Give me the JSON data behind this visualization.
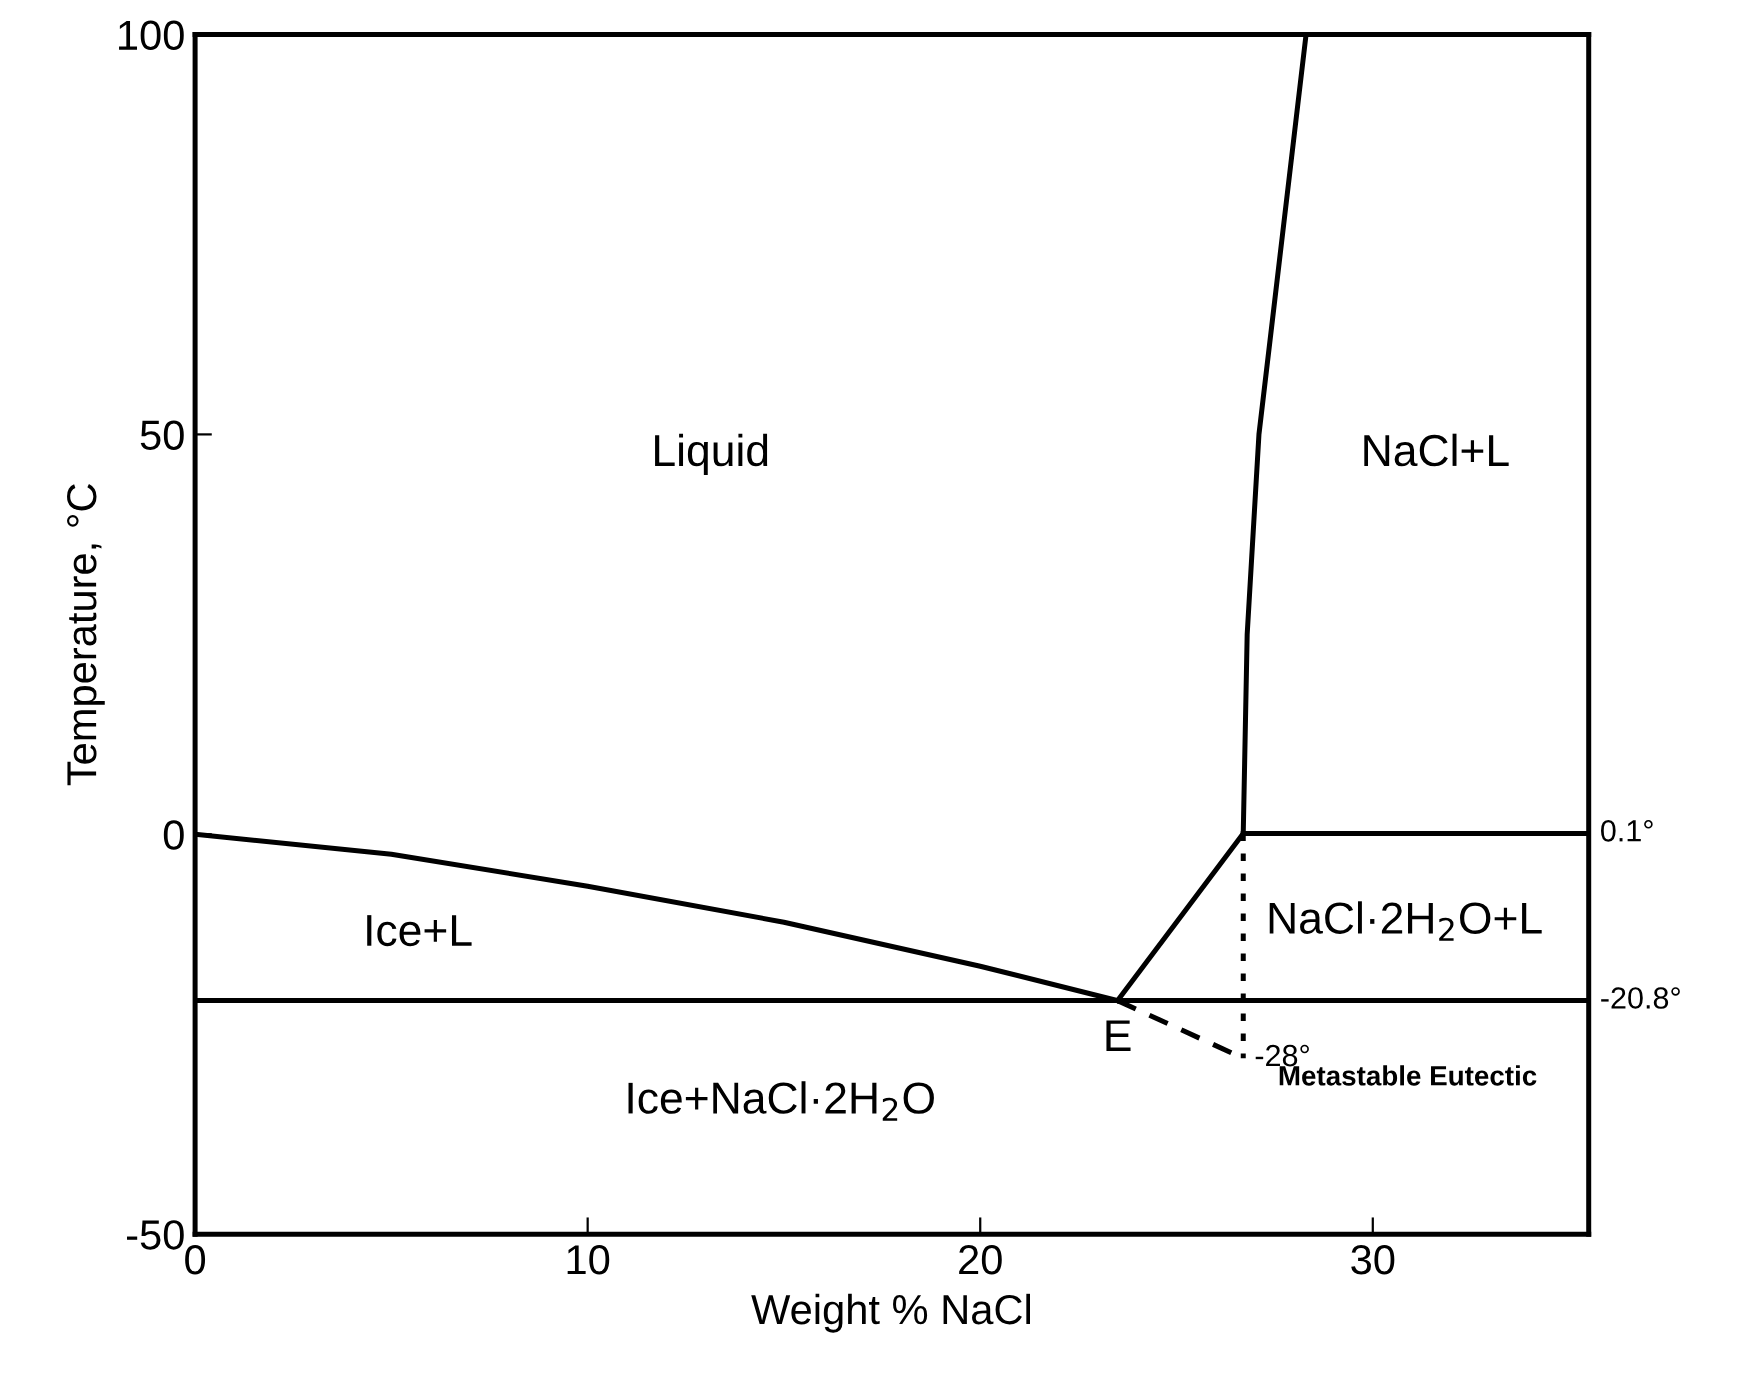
{
  "chart_data": {
    "type": "line",
    "xlabel": "Weight % NaCl",
    "ylabel": "Temperature, °C",
    "xlim": [
      0,
      35.5
    ],
    "ylim": [
      -50,
      100
    ],
    "xticks": [
      0,
      10,
      20,
      30
    ],
    "yticks": [
      -50,
      0,
      50,
      100
    ],
    "grid": false,
    "marker": "none",
    "series": [
      {
        "color": "#000000",
        "line_style": "solid",
        "x": [
          0,
          5,
          10,
          15,
          20,
          23.5
        ],
        "values": [
          0,
          -2.5,
          -6.5,
          -11,
          -16.5,
          -20.8
        ]
      },
      {
        "color": "#000000",
        "line_style": "solid",
        "x": [
          0,
          35.5
        ],
        "values": [
          -20.8,
          -20.8
        ]
      },
      {
        "color": "#000000",
        "line_style": "solid",
        "x": [
          23.5,
          26.7
        ],
        "values": [
          -20.8,
          0.1
        ]
      },
      {
        "color": "#000000",
        "line_style": "solid",
        "x": [
          26.7,
          35.5
        ],
        "values": [
          0.1,
          0.1
        ]
      },
      {
        "color": "#000000",
        "line_style": "solid",
        "x": [
          26.7,
          26.8,
          27.1,
          27.7,
          28.3
        ],
        "values": [
          0.1,
          25,
          50,
          75,
          100
        ]
      },
      {
        "color": "#000000",
        "line_style": "dotted",
        "x": [
          26.7,
          26.7
        ],
        "values": [
          0.1,
          -28
        ]
      },
      {
        "color": "#000000",
        "line_style": "dashed",
        "x": [
          23.5,
          26.7
        ],
        "values": [
          -20.8,
          -28
        ]
      }
    ],
    "annotations": [
      "Liquid",
      "NaCl+L",
      "Ice+L",
      "NaCl·2H$_{2}$O+L",
      "Ice+NaCl·2H$_{2}$O",
      {
        "text": "E",
        "x": 23.5,
        "y": -20.8
      },
      {
        "text": "0.1°",
        "x": 35.5,
        "y": 0.1
      },
      {
        "text": "-20.8°",
        "x": 35.5,
        "y": -20.8
      },
      {
        "text": "-28°",
        "x": 26.7,
        "y": -28
      },
      "Metastable Eutectic"
    ]
  }
}
